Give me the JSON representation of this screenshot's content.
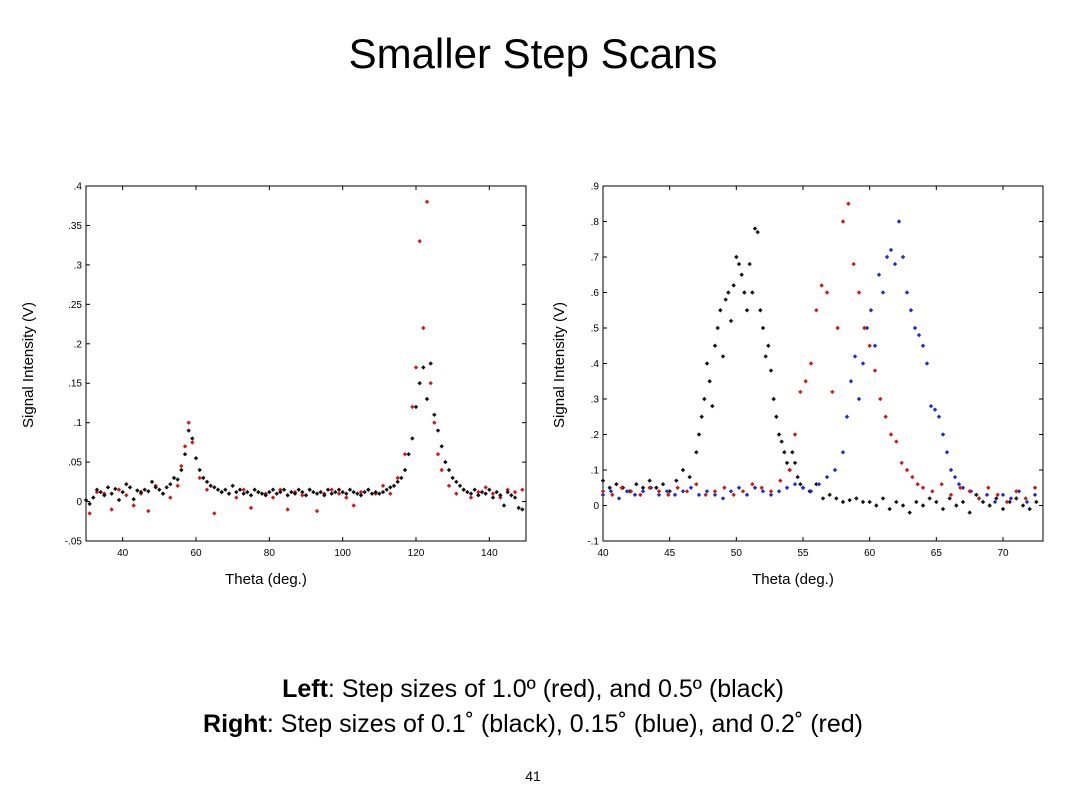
{
  "title": "Smaller Step Scans",
  "captions": {
    "left_bold": "Left",
    "left_text": ": Step sizes of 1.0º (red),  and 0.5º (black)",
    "right_bold": "Right",
    "right_text": ": Step sizes of 0.1˚ (black), 0.15˚ (blue), and 0.2˚ (red)"
  },
  "page_number": "41",
  "colors": {
    "red": "#cc1a1a",
    "black": "#111111",
    "blue": "#1a2fcc"
  },
  "chart_data": [
    {
      "type": "scatter",
      "xlabel": "Theta (deg.)",
      "ylabel": "Signal Intensity (V)",
      "xlim": [
        30,
        150
      ],
      "ylim": [
        -0.05,
        0.4
      ],
      "xticks": [
        40,
        60,
        80,
        100,
        120,
        140
      ],
      "yticks": [
        -0.05,
        0,
        0.05,
        0.1,
        0.15,
        0.2,
        0.25,
        0.3,
        0.35,
        0.4
      ],
      "series": [
        {
          "color": "red",
          "x": [
            31,
            33,
            35,
            37,
            39,
            41,
            43,
            45,
            47,
            49,
            51,
            53,
            55,
            56,
            57,
            58,
            59,
            61,
            63,
            65,
            67,
            69,
            71,
            73,
            75,
            77,
            79,
            81,
            83,
            85,
            87,
            89,
            91,
            93,
            95,
            97,
            99,
            101,
            103,
            105,
            107,
            109,
            111,
            113,
            115,
            117,
            119,
            120,
            121,
            122,
            123,
            124,
            125,
            126,
            127,
            129,
            131,
            133,
            135,
            137,
            139,
            141,
            143,
            145,
            147,
            149
          ],
          "y": [
            -0.015,
            0.012,
            0.01,
            -0.01,
            0.015,
            0.008,
            -0.005,
            0.01,
            -0.012,
            0.02,
            0.01,
            0.005,
            0.02,
            0.045,
            0.07,
            0.1,
            0.075,
            0.03,
            0.015,
            -0.015,
            0.012,
            0.01,
            0.005,
            0.015,
            -0.008,
            0.012,
            0.01,
            0.005,
            0.015,
            -0.01,
            0.012,
            0.008,
            0.015,
            -0.012,
            0.01,
            0.015,
            0.01,
            0.005,
            -0.005,
            0.012,
            0.015,
            0.01,
            0.02,
            0.01,
            0.03,
            0.06,
            0.12,
            0.17,
            0.33,
            0.22,
            0.38,
            0.15,
            0.1,
            0.06,
            0.04,
            0.02,
            0.01,
            0.015,
            0.005,
            0.012,
            0.018,
            0.01,
            0.005,
            0.015,
            0.012,
            0.015
          ]
        },
        {
          "color": "black",
          "x": [
            30,
            31,
            32,
            33,
            34,
            35,
            36,
            37,
            38,
            39,
            40,
            41,
            42,
            43,
            44,
            45,
            46,
            47,
            48,
            49,
            50,
            51,
            52,
            53,
            54,
            55,
            56,
            57,
            58,
            59,
            60,
            61,
            62,
            63,
            64,
            65,
            66,
            67,
            68,
            69,
            70,
            71,
            72,
            73,
            74,
            75,
            76,
            77,
            78,
            79,
            80,
            81,
            82,
            83,
            84,
            85,
            86,
            87,
            88,
            89,
            90,
            91,
            92,
            93,
            94,
            95,
            96,
            97,
            98,
            99,
            100,
            101,
            102,
            103,
            104,
            105,
            106,
            107,
            108,
            109,
            110,
            111,
            112,
            113,
            114,
            115,
            116,
            117,
            118,
            119,
            120,
            121,
            122,
            123,
            124,
            125,
            126,
            127,
            128,
            129,
            130,
            131,
            132,
            133,
            134,
            135,
            136,
            137,
            138,
            139,
            140,
            141,
            142,
            143,
            144,
            145,
            146,
            147,
            148,
            149
          ],
          "y": [
            0.002,
            -0.003,
            0.005,
            0.015,
            0.012,
            0.008,
            0.018,
            0.01,
            0.016,
            0.002,
            0.012,
            0.022,
            0.018,
            0.003,
            0.014,
            0.012,
            0.015,
            0.013,
            0.025,
            0.018,
            0.015,
            0.01,
            0.018,
            0.022,
            0.03,
            0.028,
            0.04,
            0.06,
            0.09,
            0.08,
            0.055,
            0.04,
            0.03,
            0.025,
            0.02,
            0.018,
            0.015,
            0.012,
            0.015,
            0.01,
            0.02,
            0.012,
            0.015,
            0.01,
            0.012,
            0.008,
            0.015,
            0.012,
            0.01,
            0.008,
            0.012,
            0.015,
            0.01,
            0.012,
            0.015,
            0.008,
            0.012,
            0.01,
            0.015,
            0.012,
            0.008,
            0.015,
            0.012,
            0.01,
            0.012,
            0.008,
            0.015,
            0.01,
            0.012,
            0.015,
            0.012,
            0.01,
            0.015,
            0.012,
            0.01,
            0.008,
            0.012,
            0.015,
            0.01,
            0.012,
            0.01,
            0.012,
            0.015,
            0.018,
            0.02,
            0.025,
            0.03,
            0.04,
            0.06,
            0.08,
            0.12,
            0.15,
            0.17,
            0.13,
            0.175,
            0.11,
            0.09,
            0.07,
            0.05,
            0.04,
            0.03,
            0.025,
            0.02,
            0.015,
            0.012,
            0.01,
            0.015,
            0.008,
            0.012,
            0.01,
            0.015,
            0.005,
            0.012,
            0.008,
            -0.005,
            0.012,
            0.008,
            0.005,
            -0.008,
            -0.01
          ]
        }
      ]
    },
    {
      "type": "scatter",
      "xlabel": "Theta (deg.)",
      "ylabel": "Signal Intensity (V)",
      "xlim": [
        40,
        73
      ],
      "ylim": [
        -0.1,
        0.9
      ],
      "xticks": [
        40,
        45,
        50,
        55,
        60,
        65,
        70
      ],
      "yticks": [
        -0.1,
        0,
        0.1,
        0.2,
        0.3,
        0.4,
        0.5,
        0.6,
        0.7,
        0.8,
        0.9
      ],
      "series": [
        {
          "color": "black",
          "x": [
            40,
            40.5,
            41,
            41.5,
            42,
            42.5,
            43,
            43.5,
            44,
            44.5,
            45,
            45.5,
            46,
            46.5,
            47,
            47.2,
            47.4,
            47.6,
            47.8,
            48,
            48.2,
            48.4,
            48.6,
            48.8,
            49,
            49.2,
            49.4,
            49.6,
            49.8,
            50,
            50.2,
            50.4,
            50.6,
            50.8,
            51,
            51.2,
            51.4,
            51.6,
            51.8,
            52,
            52.2,
            52.4,
            52.6,
            52.8,
            53,
            53.2,
            53.4,
            53.6,
            53.8,
            54,
            54.2,
            54.4,
            54.6,
            54.8,
            55,
            55.5,
            56,
            56.5,
            57,
            57.5,
            58,
            58.5,
            59,
            59.5,
            60,
            60.5,
            61,
            61.5,
            62,
            62.5,
            63,
            63.5,
            64,
            64.5,
            65,
            65.5,
            66,
            66.5,
            67,
            67.5,
            68,
            68.5,
            69,
            69.5,
            70,
            70.5,
            71,
            71.5,
            72,
            72.5
          ],
          "y": [
            0.07,
            0.05,
            0.06,
            0.05,
            0.04,
            0.06,
            0.05,
            0.07,
            0.05,
            0.06,
            0.04,
            0.07,
            0.1,
            0.08,
            0.15,
            0.2,
            0.25,
            0.3,
            0.4,
            0.35,
            0.28,
            0.45,
            0.5,
            0.55,
            0.42,
            0.58,
            0.6,
            0.52,
            0.62,
            0.7,
            0.68,
            0.65,
            0.6,
            0.55,
            0.68,
            0.6,
            0.78,
            0.77,
            0.55,
            0.5,
            0.42,
            0.45,
            0.38,
            0.3,
            0.25,
            0.2,
            0.18,
            0.15,
            0.12,
            0.1,
            0.15,
            0.12,
            0.08,
            0.06,
            0.05,
            0.04,
            0.06,
            0.02,
            0.03,
            0.02,
            0.01,
            0.015,
            0.02,
            0.01,
            0.01,
            0.0,
            0.02,
            -0.01,
            0.01,
            0.0,
            -0.02,
            0.01,
            0.0,
            0.02,
            0.01,
            -0.01,
            0.02,
            0.0,
            0.01,
            -0.02,
            0.03,
            0.01,
            0.0,
            0.02,
            -0.01,
            0.01,
            0.02,
            0.0,
            -0.01,
            0.01
          ]
        },
        {
          "color": "blue",
          "x": [
            40,
            40.6,
            41.2,
            41.8,
            42.4,
            43,
            43.6,
            44.2,
            44.8,
            45.4,
            46,
            46.6,
            47.2,
            47.8,
            48.4,
            49,
            49.6,
            50.2,
            50.8,
            51.4,
            52,
            52.6,
            53.2,
            53.8,
            54.4,
            55,
            55.6,
            56.2,
            56.8,
            57.4,
            58,
            58.3,
            58.6,
            58.9,
            59.2,
            59.5,
            59.8,
            60.1,
            60.4,
            60.7,
            61,
            61.3,
            61.6,
            61.9,
            62.2,
            62.5,
            62.8,
            63.1,
            63.4,
            63.7,
            64,
            64.3,
            64.6,
            64.9,
            65.2,
            65.5,
            65.8,
            66.1,
            66.4,
            66.7,
            67,
            67.6,
            68.2,
            68.8,
            69.4,
            70,
            70.6,
            71.2,
            71.8,
            72.4
          ],
          "y": [
            0.03,
            0.04,
            0.02,
            0.04,
            0.03,
            0.04,
            0.05,
            0.03,
            0.04,
            0.03,
            0.04,
            0.05,
            0.03,
            0.04,
            0.03,
            0.02,
            0.04,
            0.05,
            0.03,
            0.05,
            0.04,
            0.03,
            0.04,
            0.05,
            0.06,
            0.05,
            0.04,
            0.06,
            0.08,
            0.1,
            0.15,
            0.25,
            0.35,
            0.42,
            0.3,
            0.4,
            0.5,
            0.55,
            0.45,
            0.65,
            0.6,
            0.7,
            0.72,
            0.68,
            0.8,
            0.7,
            0.6,
            0.55,
            0.5,
            0.48,
            0.45,
            0.4,
            0.28,
            0.27,
            0.25,
            0.2,
            0.15,
            0.1,
            0.08,
            0.06,
            0.05,
            0.04,
            0.02,
            0.03,
            0.01,
            0.03,
            0.02,
            0.04,
            0.01,
            0.03
          ]
        },
        {
          "color": "red",
          "x": [
            40,
            40.7,
            41.4,
            42.1,
            42.8,
            43.5,
            44.2,
            44.9,
            45.6,
            46.3,
            47,
            47.7,
            48.4,
            49.1,
            49.8,
            50.5,
            51.2,
            51.9,
            52.6,
            53.3,
            54,
            54.4,
            54.8,
            55.2,
            55.6,
            56,
            56.4,
            56.8,
            57.2,
            57.6,
            58,
            58.4,
            58.8,
            59.2,
            59.6,
            60,
            60.4,
            60.8,
            61.2,
            61.6,
            62,
            62.4,
            62.8,
            63.2,
            63.6,
            64,
            64.7,
            65.4,
            66.1,
            66.8,
            67.5,
            68.2,
            68.9,
            69.6,
            70.3,
            71,
            71.7,
            72.4
          ],
          "y": [
            0.04,
            0.03,
            0.05,
            0.04,
            0.03,
            0.05,
            0.04,
            0.03,
            0.05,
            0.04,
            0.06,
            0.03,
            0.04,
            0.05,
            0.03,
            0.04,
            0.06,
            0.05,
            0.04,
            0.07,
            0.1,
            0.2,
            0.32,
            0.35,
            0.4,
            0.55,
            0.62,
            0.6,
            0.32,
            0.5,
            0.8,
            0.85,
            0.68,
            0.6,
            0.5,
            0.45,
            0.38,
            0.3,
            0.25,
            0.2,
            0.18,
            0.12,
            0.1,
            0.08,
            0.06,
            0.05,
            0.04,
            0.06,
            0.03,
            0.05,
            0.04,
            0.02,
            0.05,
            0.03,
            0.01,
            0.04,
            0.02,
            0.05
          ]
        }
      ]
    }
  ]
}
